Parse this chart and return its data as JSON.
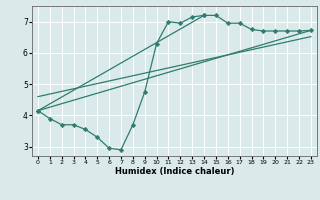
{
  "xlabel": "Humidex (Indice chaleur)",
  "bg_color": "#daeaea",
  "line_color": "#2e7d6e",
  "grid_color": "#ffffff",
  "xlim": [
    -0.5,
    23.5
  ],
  "ylim": [
    2.7,
    7.5
  ],
  "xticks": [
    0,
    1,
    2,
    3,
    4,
    5,
    6,
    7,
    8,
    9,
    10,
    11,
    12,
    13,
    14,
    15,
    16,
    17,
    18,
    19,
    20,
    21,
    22,
    23
  ],
  "yticks": [
    3,
    4,
    5,
    6,
    7
  ],
  "line1_x": [
    0,
    1,
    2,
    3,
    4,
    5,
    6,
    7,
    8,
    9,
    10,
    11,
    12,
    13,
    14
  ],
  "line1_y": [
    4.15,
    3.9,
    3.7,
    3.7,
    3.55,
    3.3,
    2.95,
    2.9,
    3.7,
    4.75,
    6.3,
    7.0,
    6.95,
    7.15,
    7.2
  ],
  "line2_x": [
    0,
    14,
    15,
    16,
    17,
    18,
    19,
    20,
    21,
    22,
    23
  ],
  "line2_y": [
    4.15,
    7.2,
    7.2,
    6.95,
    6.95,
    6.75,
    6.7,
    6.7,
    6.7,
    6.7,
    6.72
  ],
  "line3_x": [
    0,
    23
  ],
  "line3_y": [
    4.15,
    6.72
  ],
  "line4_x": [
    0,
    23
  ],
  "line4_y": [
    4.6,
    6.52
  ],
  "marker": "D",
  "markersize": 2.2,
  "linewidth": 0.9
}
